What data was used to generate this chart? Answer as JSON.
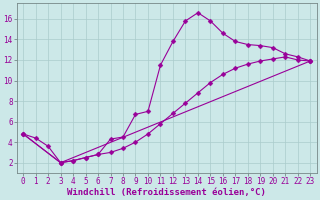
{
  "background_color": "#cce8e8",
  "grid_color": "#aacccc",
  "line_color": "#990099",
  "marker": "D",
  "markersize": 2.5,
  "linewidth": 0.8,
  "xlabel": "Windchill (Refroidissement éolien,°C)",
  "xlabel_fontsize": 6.5,
  "tick_fontsize": 5.5,
  "xlim": [
    -0.5,
    23.5
  ],
  "ylim": [
    1.0,
    17.5
  ],
  "yticks": [
    2,
    4,
    6,
    8,
    10,
    12,
    14,
    16
  ],
  "xticks": [
    0,
    1,
    2,
    3,
    4,
    5,
    6,
    7,
    8,
    9,
    10,
    11,
    12,
    13,
    14,
    15,
    16,
    17,
    18,
    19,
    20,
    21,
    22,
    23
  ],
  "line1_x": [
    0,
    1,
    2,
    3,
    4,
    5,
    6,
    7,
    8,
    9,
    10,
    11,
    12,
    13,
    14,
    15,
    16,
    17,
    18,
    19,
    20,
    21,
    22,
    23
  ],
  "line1_y": [
    4.8,
    4.4,
    3.6,
    2.0,
    2.2,
    2.5,
    2.8,
    4.3,
    4.5,
    6.7,
    7.0,
    11.5,
    13.8,
    15.8,
    16.6,
    15.8,
    14.6,
    13.8,
    13.5,
    13.4,
    13.2,
    12.6,
    12.3,
    11.9
  ],
  "line2_x": [
    0,
    3,
    4,
    5,
    6,
    7,
    8,
    9,
    10,
    11,
    12,
    13,
    14,
    15,
    16,
    17,
    18,
    19,
    20,
    21,
    22,
    23
  ],
  "line2_y": [
    4.8,
    2.0,
    2.2,
    2.5,
    2.8,
    3.0,
    3.4,
    4.0,
    4.8,
    5.8,
    6.8,
    7.8,
    8.8,
    9.8,
    10.6,
    11.2,
    11.6,
    11.9,
    12.1,
    12.3,
    12.0,
    11.9
  ],
  "line3_x": [
    0,
    3,
    23
  ],
  "line3_y": [
    4.8,
    2.0,
    11.9
  ]
}
